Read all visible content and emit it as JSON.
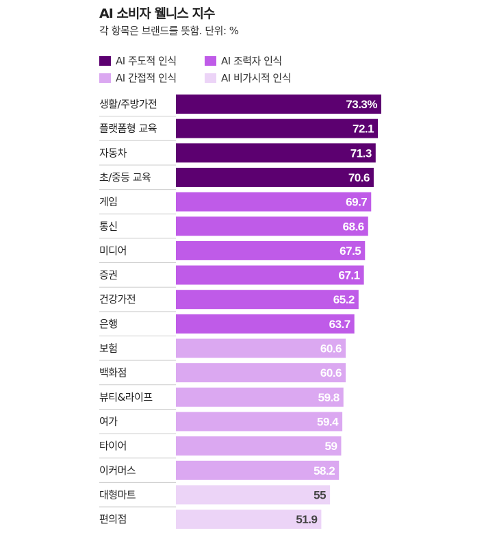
{
  "chart_data": {
    "type": "bar",
    "orientation": "horizontal",
    "title": "AI 소비자 웰니스 지수",
    "subtitle": "각 항목은 브랜드를 뜻함. 단위: %",
    "xlim": [
      0,
      73.3
    ],
    "legend": [
      {
        "name": "AI 주도적 인식",
        "color": "#5c0070"
      },
      {
        "name": "AI 조력자 인식",
        "color": "#bf5be8"
      },
      {
        "name": "AI 간접적 인식",
        "color": "#dba8f1"
      },
      {
        "name": "AI 비가시적 인식",
        "color": "#ecd4f7"
      }
    ],
    "categories": [
      "생활/주방가전",
      "플랫폼형 교육",
      "자동차",
      "초/중등 교육",
      "게임",
      "통신",
      "미디어",
      "증권",
      "건강가전",
      "은행",
      "보험",
      "백화점",
      "뷰티&라이프",
      "여가",
      "타이어",
      "이커머스",
      "대형마트",
      "편의점"
    ],
    "values": [
      73.3,
      72.1,
      71.3,
      70.6,
      69.7,
      68.6,
      67.5,
      67.1,
      65.2,
      63.7,
      60.6,
      60.6,
      59.8,
      59.4,
      59,
      58.2,
      55,
      51.9
    ],
    "labels": [
      "73.3%",
      "72.1",
      "71.3",
      "70.6",
      "69.7",
      "68.6",
      "67.5",
      "67.1",
      "65.2",
      "63.7",
      "60.6",
      "60.6",
      "59.8",
      "59.4",
      "59",
      "58.2",
      "55",
      "51.9"
    ],
    "group": [
      0,
      0,
      0,
      0,
      1,
      1,
      1,
      1,
      1,
      1,
      2,
      2,
      2,
      2,
      2,
      2,
      3,
      3
    ]
  }
}
